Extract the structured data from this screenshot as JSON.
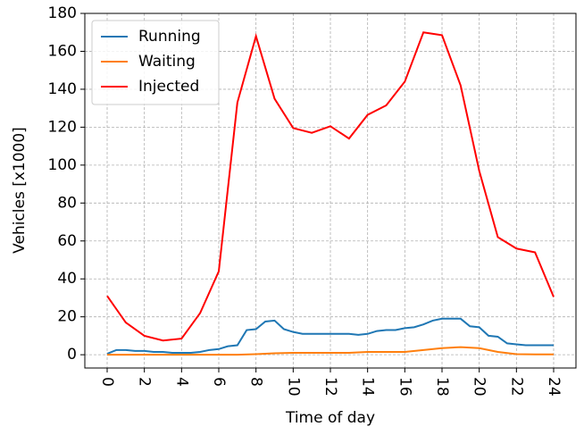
{
  "chart_data": {
    "type": "line",
    "xlabel": "Time of day",
    "ylabel": "Vehicles [x1000]",
    "xlim": [
      -1.2,
      25.2
    ],
    "ylim": [
      -7,
      180
    ],
    "xticks": [
      0,
      2,
      4,
      6,
      8,
      10,
      12,
      14,
      16,
      18,
      20,
      22,
      24
    ],
    "yticks": [
      0,
      20,
      40,
      60,
      80,
      100,
      120,
      140,
      160,
      180
    ],
    "grid": true,
    "legend": "upper left",
    "series": [
      {
        "name": "Running",
        "color": "#1f77b4",
        "x": [
          0,
          0.5,
          1,
          1.5,
          2,
          2.5,
          3,
          3.5,
          4,
          4.5,
          5,
          5.5,
          6,
          6.5,
          7,
          7.5,
          8,
          8.5,
          9,
          9.5,
          10,
          10.5,
          11,
          11.5,
          12,
          12.5,
          13,
          13.5,
          14,
          14.5,
          15,
          15.5,
          16,
          16.5,
          17,
          17.5,
          18,
          18.5,
          19,
          19.5,
          20,
          20.5,
          21,
          21.5,
          22,
          22.5,
          23,
          23.5,
          24
        ],
        "values": [
          0.5,
          2.5,
          2.5,
          2,
          2,
          1.5,
          1.5,
          1,
          1,
          1,
          1.5,
          2.5,
          3,
          4.5,
          5,
          13,
          13.5,
          17.5,
          18,
          13.5,
          12,
          11,
          11,
          11,
          11,
          11,
          11,
          10.5,
          11,
          12.5,
          13,
          13,
          14,
          14.5,
          16,
          18,
          19,
          19,
          19,
          15,
          14.5,
          10,
          9.5,
          6,
          5.5,
          5,
          5,
          5,
          5
        ]
      },
      {
        "name": "Waiting",
        "color": "#ff7f0e",
        "x": [
          0,
          1,
          2,
          3,
          4,
          5,
          6,
          7,
          8,
          9,
          10,
          11,
          12,
          13,
          14,
          15,
          16,
          17,
          18,
          19,
          20,
          21,
          22,
          23,
          24
        ],
        "values": [
          0,
          0,
          0,
          0,
          0,
          0,
          0,
          0,
          0.3,
          0.8,
          1,
          1,
          1,
          1,
          1.5,
          1.5,
          1.5,
          2.5,
          3.5,
          4,
          3.5,
          1.5,
          0.3,
          0.2,
          0.2
        ]
      },
      {
        "name": "Injected",
        "color": "#ff0000",
        "x": [
          0,
          1,
          2,
          3,
          4,
          5,
          6,
          7,
          8,
          9,
          10,
          11,
          12,
          13,
          14,
          15,
          16,
          17,
          18,
          19,
          20,
          21,
          22,
          23,
          24
        ],
        "values": [
          31,
          17,
          10,
          7.5,
          8.5,
          22,
          44,
          133,
          168,
          135,
          119.5,
          117,
          120.5,
          114,
          126.5,
          131.5,
          144,
          170,
          168.5,
          142,
          97,
          62,
          56,
          54,
          30.5
        ]
      }
    ]
  }
}
